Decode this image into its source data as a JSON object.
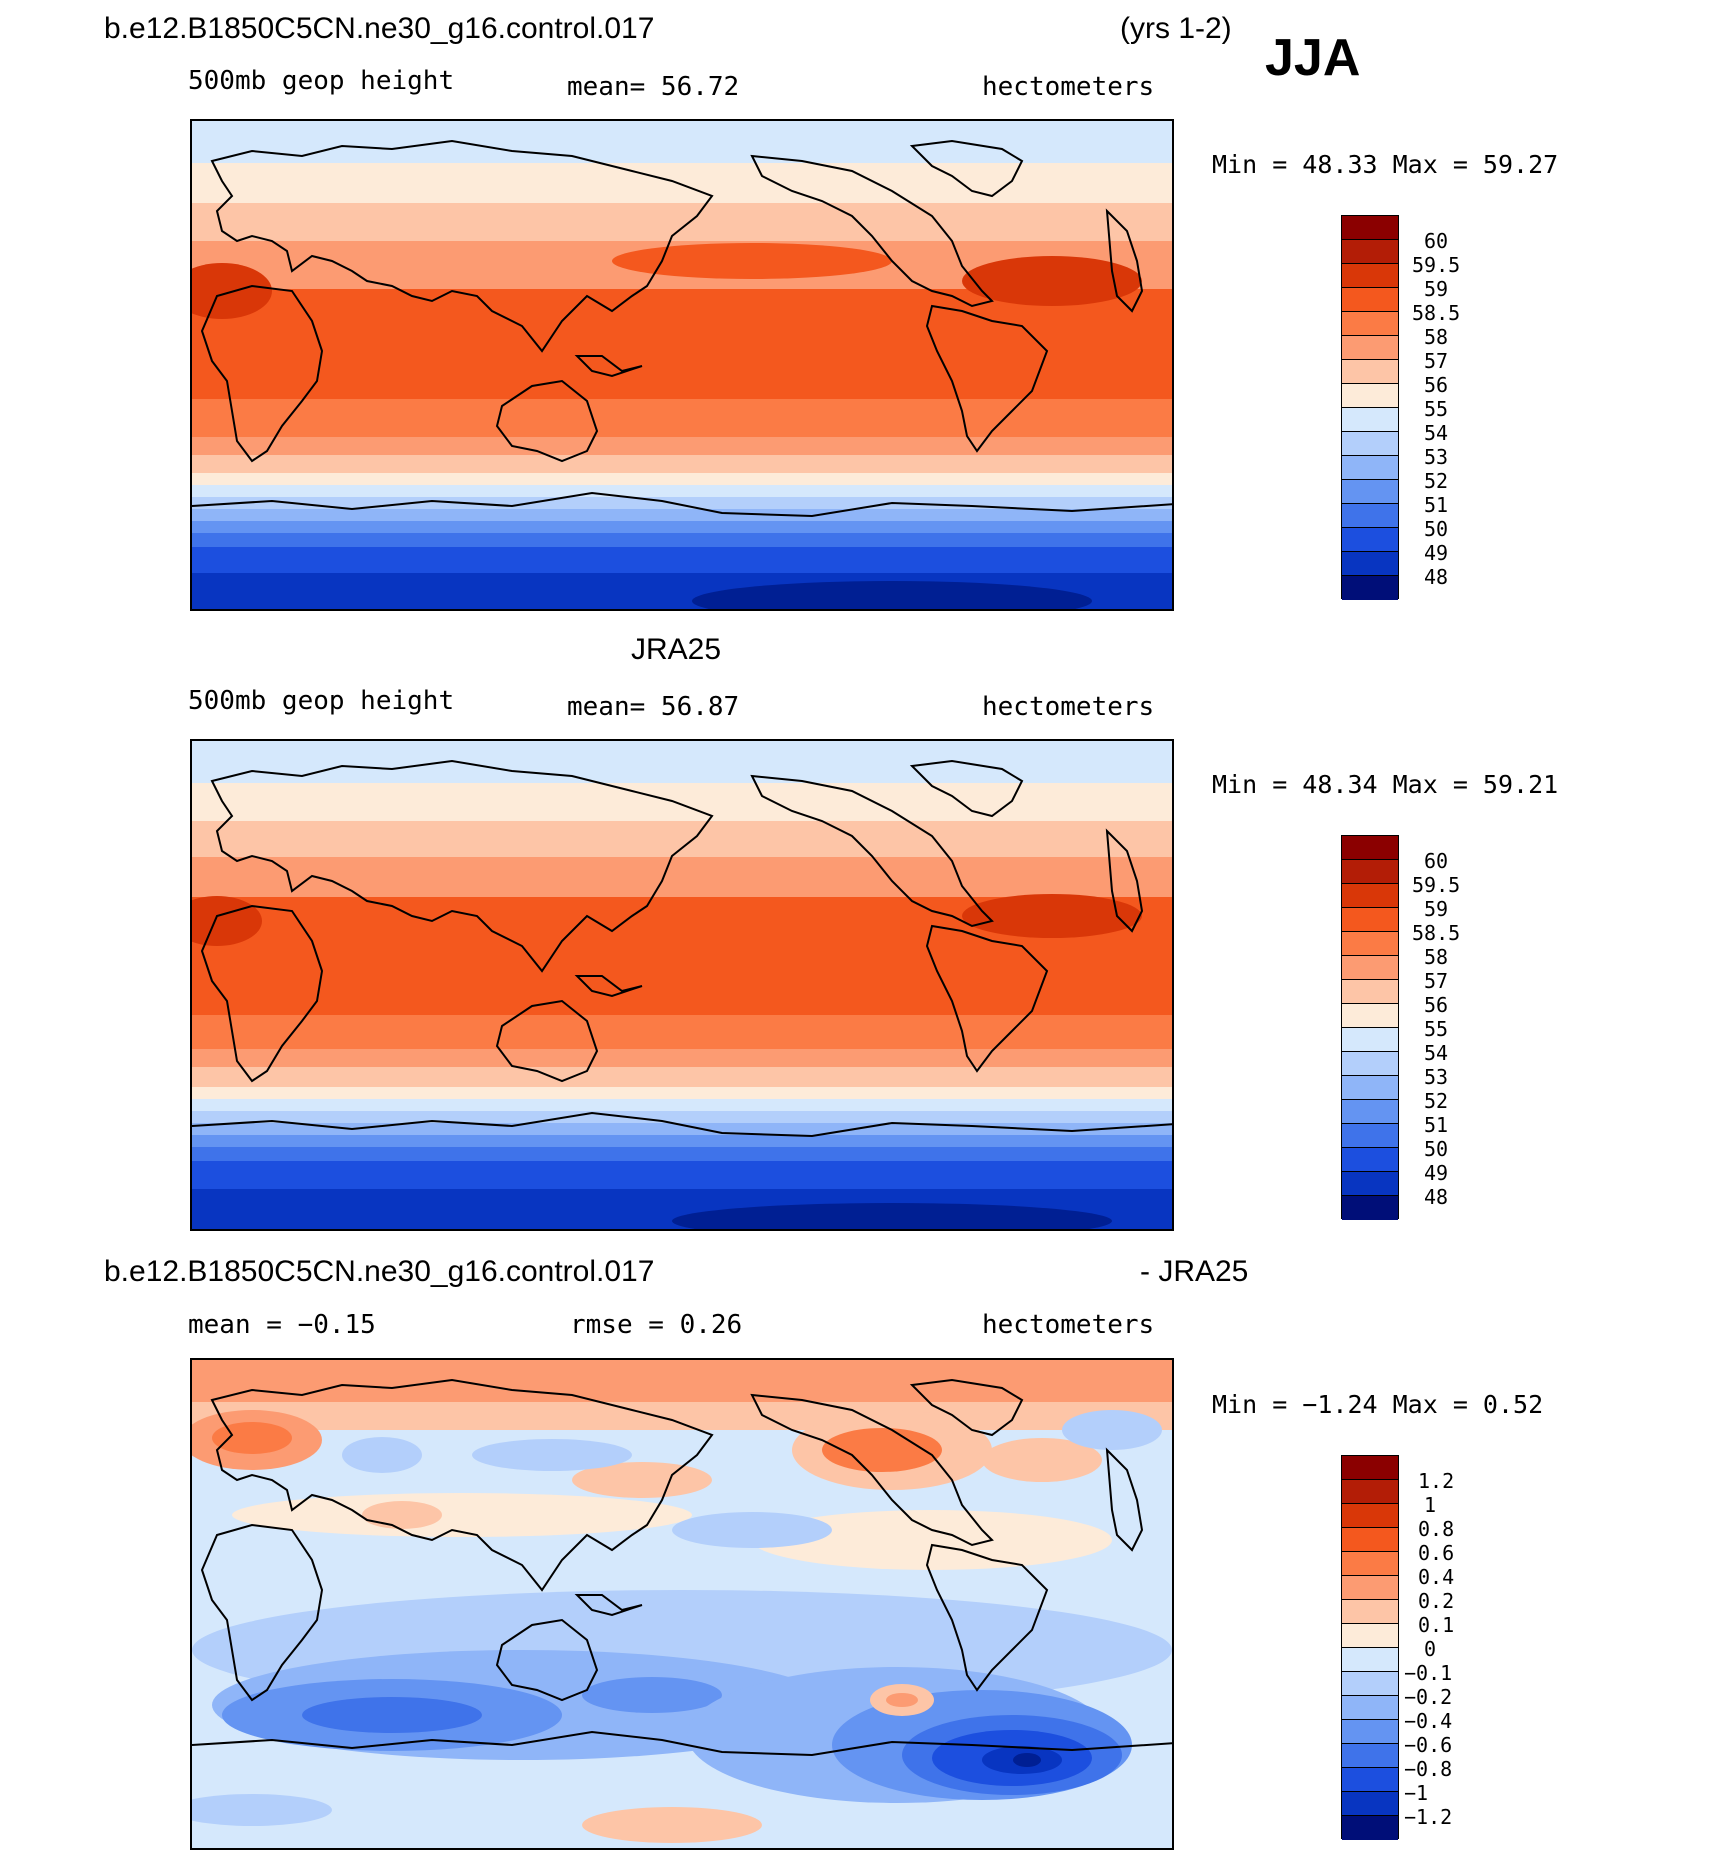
{
  "header": {
    "case": "b.e12.B1850C5CN.ne30_g16.control.017",
    "years": "(yrs 1-2)",
    "season": "JJA"
  },
  "panels": [
    {
      "title": "",
      "variable": "500mb geop height",
      "stat_left": "",
      "mean": "mean=   56.72",
      "units": "hectometers",
      "minmax": "Min =   48.33 Max =   59.27",
      "levels": [
        "60",
        "59.5",
        "59",
        "58.5",
        "58",
        "57",
        "56",
        "55",
        "54",
        "53",
        "52",
        "51",
        "50",
        "49",
        "48"
      ]
    },
    {
      "title": "JRA25",
      "variable": "500mb geop height",
      "stat_left": "",
      "mean": "mean=   56.87",
      "units": "hectometers",
      "minmax": "Min =   48.34 Max =   59.21",
      "levels": [
        "60",
        "59.5",
        "59",
        "58.5",
        "58",
        "57",
        "56",
        "55",
        "54",
        "53",
        "52",
        "51",
        "50",
        "49",
        "48"
      ]
    },
    {
      "title": "b.e12.B1850C5CN.ne30_g16.control.017",
      "title_right": "- JRA25",
      "variable": "",
      "stat_left": "mean =   −0.15",
      "mean": "rmse =    0.26",
      "units": "hectometers",
      "minmax": "Min =   −1.24 Max =    0.52",
      "levels": [
        "1.2",
        "1",
        "0.8",
        "0.6",
        "0.4",
        "0.2",
        "0.1",
        "0",
        "−0.1",
        "−0.2",
        "−0.4",
        "−0.6",
        "−0.8",
        "−1",
        "−1.2"
      ]
    }
  ],
  "colors": {
    "scale": [
      "#8b0000",
      "#b31d06",
      "#d93708",
      "#f4581e",
      "#fb7b45",
      "#fc9b72",
      "#fdc5a7",
      "#fdebd9",
      "#d5e8fc",
      "#b3cffb",
      "#8fb5f8",
      "#6494f2",
      "#3f73ea",
      "#1c4fdf",
      "#0835c1",
      "#001f93",
      "#000e78"
    ],
    "bar_positive": [
      "#8b0000",
      "#b31d06",
      "#d93708",
      "#f4581e",
      "#fb7b45",
      "#fc9b72",
      "#fdc5a7",
      "#fdebd9"
    ],
    "bar_negative": [
      "#d5e8fc",
      "#b3cffb",
      "#8fb5f8",
      "#6494f2",
      "#3f73ea",
      "#1c4fdf",
      "#0835c1",
      "#001f93"
    ]
  }
}
